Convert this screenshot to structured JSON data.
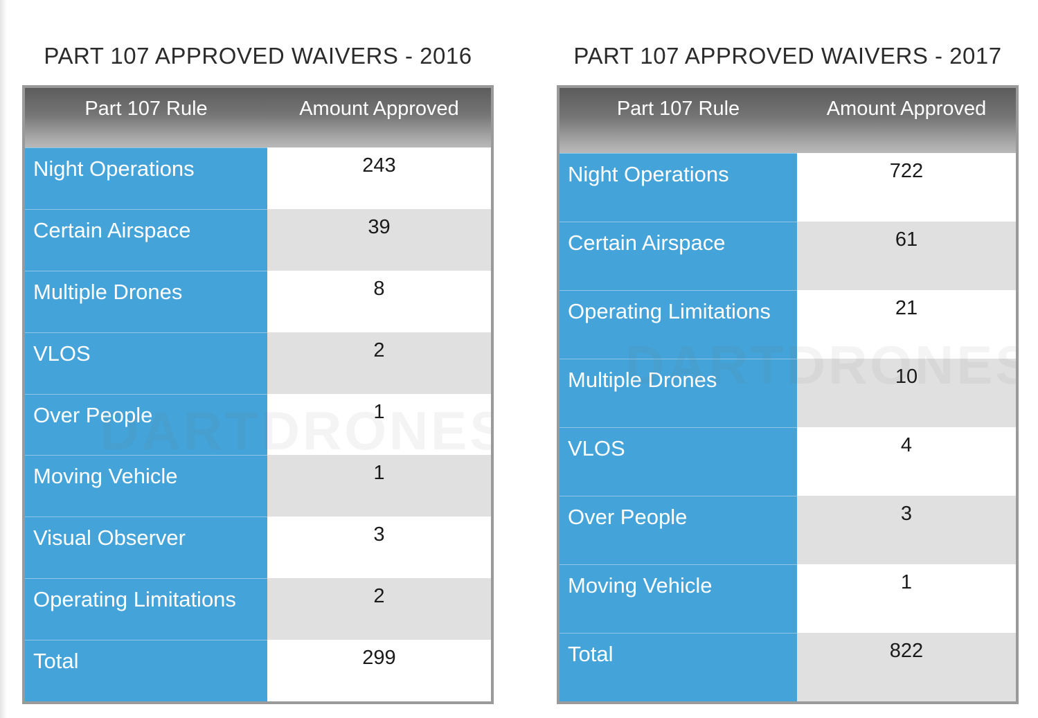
{
  "chart_data": [
    {
      "type": "table",
      "title": "PART 107 APPROVED WAIVERS - 2016",
      "columns": [
        "Part 107 Rule",
        "Amount Approved"
      ],
      "rows": [
        {
          "rule": "Night Operations",
          "amount": "243"
        },
        {
          "rule": "Certain Airspace",
          "amount": "39"
        },
        {
          "rule": "Multiple Drones",
          "amount": "8"
        },
        {
          "rule": "VLOS",
          "amount": "2"
        },
        {
          "rule": "Over People",
          "amount": "1"
        },
        {
          "rule": "Moving Vehicle",
          "amount": "1"
        },
        {
          "rule": "Visual Observer",
          "amount": "3"
        },
        {
          "rule": "Operating Limitations",
          "amount": "2"
        },
        {
          "rule": "Total",
          "amount": "299"
        }
      ]
    },
    {
      "type": "table",
      "title": "PART 107 APPROVED WAIVERS - 2017",
      "columns": [
        "Part 107 Rule",
        "Amount Approved"
      ],
      "rows": [
        {
          "rule": "Night Operations",
          "amount": "722"
        },
        {
          "rule": "Certain Airspace",
          "amount": "61"
        },
        {
          "rule": "Operating Limitations",
          "amount": "21"
        },
        {
          "rule": "Multiple Drones",
          "amount": "10"
        },
        {
          "rule": "VLOS",
          "amount": "4"
        },
        {
          "rule": "Over People",
          "amount": "3"
        },
        {
          "rule": "Moving Vehicle",
          "amount": "1"
        },
        {
          "rule": "Total",
          "amount": "822"
        }
      ]
    }
  ],
  "watermark": {
    "text": "DARTDRONES"
  },
  "colors": {
    "rule_cell": "#44a3d8",
    "header_top": "#5c5c5c",
    "header_bottom": "#b9b9b9",
    "alt_row": "#e0e0e0",
    "frame": "#9a9a9a"
  }
}
